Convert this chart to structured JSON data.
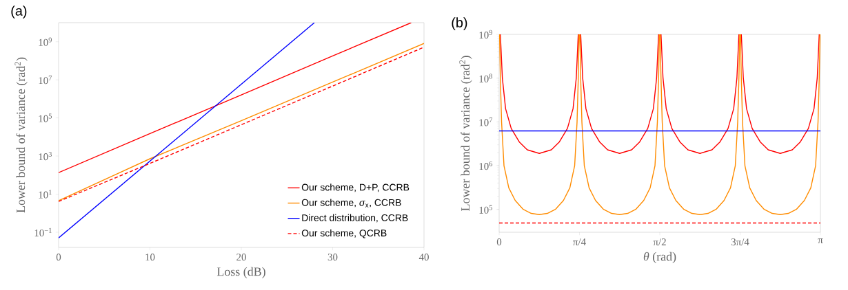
{
  "chart_data": [
    {
      "type": "line",
      "title": "(a)",
      "xlabel": "Loss (dB)",
      "ylabel": "Lower bound of variance (rad$^{2}$)",
      "log": "y",
      "legend": "bottom right",
      "xlim": [
        0,
        40
      ],
      "xticks": [
        0,
        10,
        20,
        30,
        40
      ],
      "ylim": [
        0.016,
        10000000000.0
      ],
      "yticks": [
        {
          "value": 0.1,
          "label": "10$^{−1}$"
        },
        {
          "value": 10,
          "label": "10$^{1}$"
        },
        {
          "value": 1000,
          "label": "10$^{3}$"
        },
        {
          "value": 100000,
          "label": "10$^{5}$"
        },
        {
          "value": 10000000,
          "label": "10$^{7}$"
        },
        {
          "value": 1000000000,
          "label": "10$^{9}$"
        }
      ],
      "series": [
        {
          "name": "Our scheme, D+P, CCRB",
          "color": "#ff0000",
          "line_style": "solid",
          "x": [
            0,
            10,
            20,
            30,
            38.6
          ],
          "values": [
            135,
            15000,
            1600000,
            180000000,
            10000000000
          ]
        },
        {
          "name": "Our scheme, *σ*$_{x}$, CCRB",
          "color": "#ff8c00",
          "line_style": "solid",
          "x": [
            0,
            10,
            20,
            30,
            40
          ],
          "values": [
            4.5,
            720,
            72000,
            7600000,
            810000000
          ]
        },
        {
          "name": "Direct distribution, CCRB",
          "color": "#0000ff",
          "line_style": "solid",
          "x": [
            0,
            28
          ],
          "values": [
            0.05,
            10000000000
          ]
        },
        {
          "name": "Our scheme, QCRB",
          "color": "#ff0000",
          "line_style": "dashed",
          "x": [
            0,
            10,
            20,
            30,
            40
          ],
          "values": [
            4.1,
            410,
            44000,
            4700000,
            520000000
          ]
        }
      ]
    },
    {
      "type": "line",
      "title": "(b)",
      "xlabel": "*θ* (rad)",
      "ylabel": "Lower bound of variance (rad$^{2}$)",
      "log": "y",
      "xlim": [
        0,
        3.1416
      ],
      "xticks": [
        0,
        {
          "value": 0.7854,
          "label": "π/4"
        },
        {
          "value": 1.5708,
          "label": "π/2"
        },
        {
          "value": 2.3562,
          "label": "3π/4"
        },
        {
          "value": 3.1416,
          "label": "π"
        }
      ],
      "ylim": [
        30000,
        1000000000
      ],
      "yticks": [
        {
          "value": 100000,
          "label": "10$^{5}$"
        },
        {
          "value": 1000000,
          "label": "10$^{6}$"
        },
        {
          "value": 10000000,
          "label": "10$^{7}$"
        },
        {
          "value": 100000000,
          "label": "10$^{8}$"
        },
        {
          "value": 1000000000,
          "label": "10$^{9}$"
        }
      ],
      "series": [
        {
          "color": "#ff0000",
          "line_style": "solid",
          "x": [
            0.0118,
            0.0314,
            0.0628,
            0.1178,
            0.1963,
            0.2749,
            0.3927,
            0.5105,
            0.589,
            0.6676,
            0.7226,
            0.754,
            0.7736,
            0.7972,
            0.8168,
            0.8482,
            0.9032,
            0.9817,
            1.0603,
            1.1781,
            1.2959,
            1.3744,
            1.453,
            1.508,
            1.5394,
            1.559,
            1.5826,
            1.6022,
            1.6336,
            1.6886,
            1.7671,
            1.8457,
            1.9635,
            2.0813,
            2.1598,
            2.2384,
            2.2934,
            2.3248,
            2.3444,
            2.368,
            2.3876,
            2.419,
            2.474,
            2.5525,
            2.6311,
            2.7489,
            2.8667,
            2.9452,
            3.0238,
            3.0788,
            3.1102,
            3.1298
          ],
          "values": [
            1000000000.0,
            100000000.0,
            20000000.0,
            7100000.0,
            3500000.0,
            2300000.0,
            1900000.0,
            2300000.0,
            3500000.0,
            7100000.0,
            20000000.0,
            100000000.0,
            1000000000.0,
            1000000000.0,
            100000000.0,
            20000000.0,
            7100000.0,
            3500000.0,
            2300000.0,
            1900000.0,
            2300000.0,
            3500000.0,
            7100000.0,
            20000000.0,
            100000000.0,
            1000000000.0,
            1000000000.0,
            100000000.0,
            20000000.0,
            7100000.0,
            3500000.0,
            2300000.0,
            1900000.0,
            2300000.0,
            3500000.0,
            7100000.0,
            20000000.0,
            100000000.0,
            1000000000.0,
            1000000000.0,
            100000000.0,
            20000000.0,
            7100000.0,
            3500000.0,
            2300000.0,
            1900000.0,
            2300000.0,
            3500000.0,
            7100000.0,
            20000000.0,
            100000000.0,
            1000000000.0
          ]
        },
        {
          "color": "#ff8c00",
          "line_style": "solid",
          "x": [
            0.0039,
            0.0118,
            0.0236,
            0.0471,
            0.0942,
            0.1571,
            0.2356,
            0.3142,
            0.3927,
            0.4712,
            0.5498,
            0.6283,
            0.6912,
            0.7383,
            0.7618,
            0.7736,
            0.7815,
            0.7893,
            0.7972,
            0.809,
            0.8325,
            0.8796,
            0.9425,
            1.021,
            1.0996,
            1.1781,
            1.2566,
            1.3352,
            1.4137,
            1.4766,
            1.5237,
            1.5472,
            1.559,
            1.5669,
            1.5747,
            1.5826,
            1.5944,
            1.6179,
            1.665,
            1.7279,
            1.8064,
            1.885,
            1.9635,
            2.042,
            2.1206,
            2.1991,
            2.262,
            2.3091,
            2.3326,
            2.3444,
            2.3523,
            2.3601,
            2.368,
            2.3798,
            2.4033,
            2.4504,
            2.5133,
            2.5918,
            2.6704,
            2.7489,
            2.8274,
            2.906,
            2.9845,
            3.0474,
            3.0945,
            3.118,
            3.1298,
            3.1377
          ],
          "values": [
            1000000000.0,
            100000000.0,
            10000000.0,
            1000000.0,
            310000.0,
            160000.0,
            100000.0,
            81000.0,
            76000.0,
            81000.0,
            100000.0,
            160000.0,
            310000.0,
            1000000.0,
            10000000.0,
            100000000.0,
            1000000000.0,
            1000000000.0,
            100000000.0,
            10000000.0,
            1000000.0,
            310000.0,
            160000.0,
            100000.0,
            81000.0,
            76000.0,
            81000.0,
            100000.0,
            160000.0,
            310000.0,
            1000000.0,
            10000000.0,
            100000000.0,
            1000000000.0,
            1000000000.0,
            100000000.0,
            10000000.0,
            1000000.0,
            310000.0,
            160000.0,
            100000.0,
            81000.0,
            76000.0,
            81000.0,
            100000.0,
            160000.0,
            310000.0,
            1000000.0,
            10000000.0,
            100000000.0,
            1000000000.0,
            1000000000.0,
            100000000.0,
            10000000.0,
            1000000.0,
            310000.0,
            160000.0,
            100000.0,
            81000.0,
            76000.0,
            81000.0,
            100000.0,
            160000.0,
            310000.0,
            1000000.0,
            10000000.0,
            100000000.0,
            1000000000.0
          ]
        },
        {
          "color": "#0000ff",
          "line_style": "solid",
          "x": [
            0,
            3.1416
          ],
          "values": [
            6200000,
            6200000
          ]
        },
        {
          "color": "#ff0000",
          "line_style": "dashed",
          "x": [
            0,
            3.1416
          ],
          "values": [
            49000,
            49000
          ]
        }
      ]
    }
  ]
}
